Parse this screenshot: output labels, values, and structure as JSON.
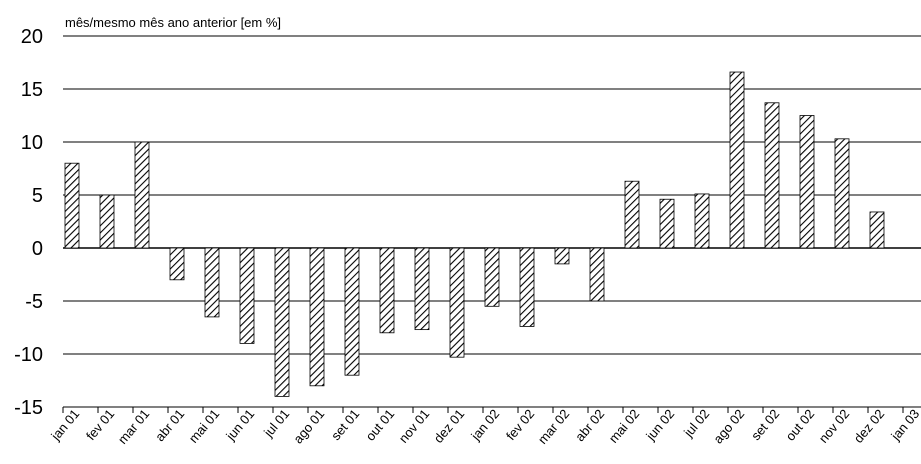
{
  "chart_data": {
    "type": "bar",
    "ylabel": "mês/mesmo mês ano anterior [em %]",
    "ylim": [
      -15,
      20
    ],
    "yticks": [
      "20",
      "15",
      "10",
      "5",
      "0",
      "-5",
      "-10",
      "-15"
    ],
    "grid": true,
    "legend": "none",
    "categories": [
      "jan 01",
      "fev 01",
      "mar 01",
      "abr 01",
      "mai 01",
      "jun 01",
      "jul 01",
      "ago 01",
      "set 01",
      "out 01",
      "nov 01",
      "dez 01",
      "jan 02",
      "fev 02",
      "mar 02",
      "abr 02",
      "mai 02",
      "jun 02",
      "jul 02",
      "ago 02",
      "set 02",
      "out 02",
      "nov 02",
      "dez 02",
      "jan 03"
    ],
    "values": [
      8.0,
      5.0,
      10.0,
      -3.0,
      -6.5,
      -9.0,
      -14.0,
      -13.0,
      -12.0,
      -8.0,
      -7.7,
      -10.3,
      -5.5,
      -7.4,
      -1.5,
      -5.0,
      6.3,
      4.6,
      5.1,
      16.6,
      13.7,
      12.5,
      10.3,
      3.4,
      null
    ],
    "colors": {
      "bar_stroke": "#000000",
      "hatch": "#000000",
      "grid": "#000000"
    }
  }
}
